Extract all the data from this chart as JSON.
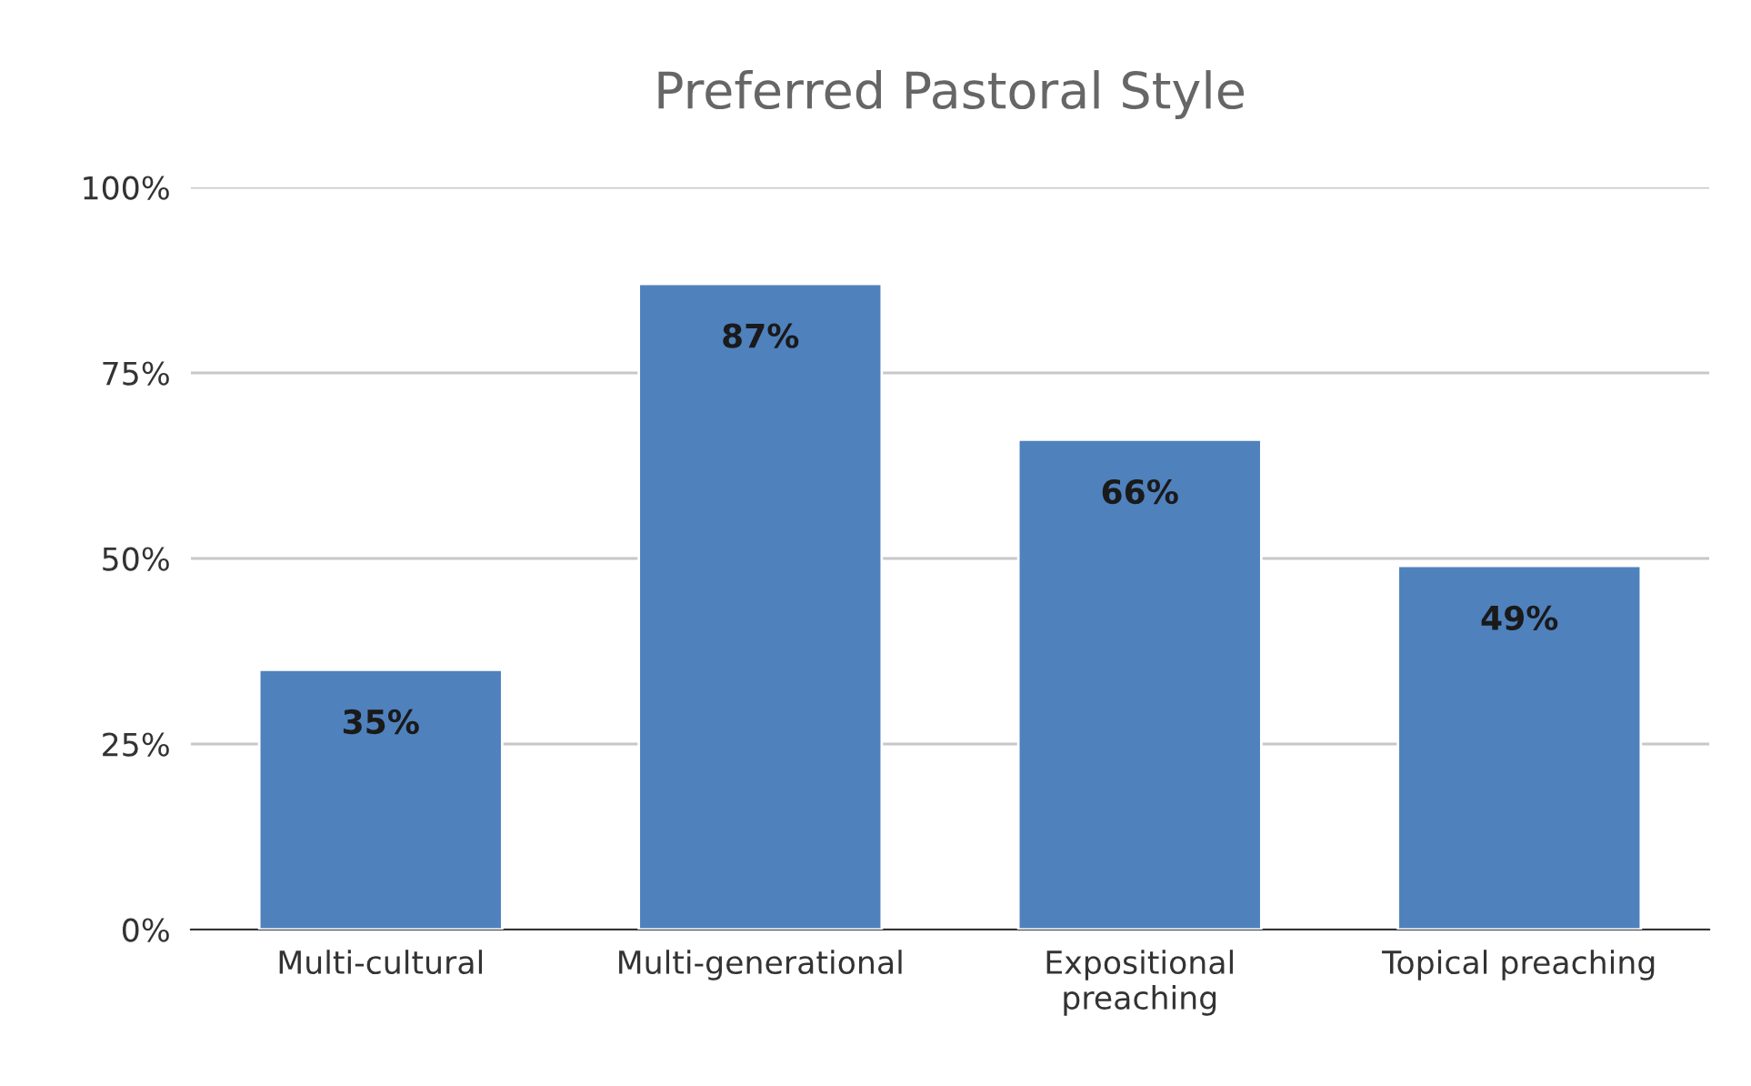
{
  "chart_data": {
    "type": "bar",
    "title": "Preferred Pastoral Style",
    "categories": [
      "Multi-cultural",
      "Multi-generational",
      "Expositional\npreaching",
      "Topical preaching"
    ],
    "values": [
      35,
      87,
      66,
      49
    ],
    "color": "#4f81bd",
    "value_labels": [
      "35%",
      "87%",
      "66%",
      "49%"
    ],
    "ylim": [
      0,
      100
    ],
    "yticks": [
      {
        "value": 0,
        "label": "0%"
      },
      {
        "value": 25,
        "label": "25%"
      },
      {
        "value": 50,
        "label": "50%"
      },
      {
        "value": 75,
        "label": "75%"
      },
      {
        "value": 100,
        "label": "100%"
      }
    ],
    "grid": "y",
    "legend": false
  }
}
